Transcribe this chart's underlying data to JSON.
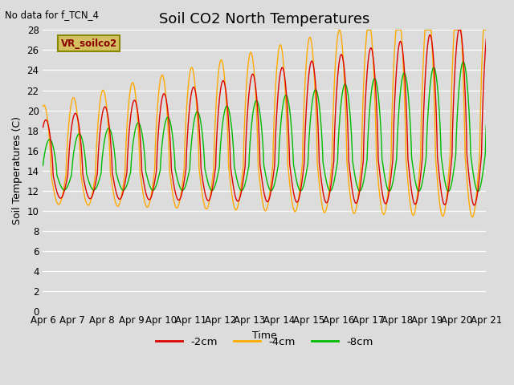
{
  "title": "Soil CO2 North Temperatures",
  "no_data_text": "No data for f_TCN_4",
  "ylabel": "Soil Temperatures (C)",
  "xlabel": "Time",
  "legend_label": "VR_soilco2",
  "ylim": [
    0,
    28
  ],
  "xtick_labels": [
    "Apr 6",
    "Apr 7",
    "Apr 8",
    "Apr 9",
    "Apr 10",
    "Apr 11",
    "Apr 12",
    "Apr 13",
    "Apr 14",
    "Apr 15",
    "Apr 16",
    "Apr 17",
    "Apr 18",
    "Apr 19",
    "Apr 20",
    "Apr 21"
  ],
  "line_colors": [
    "#dd0000",
    "#ffaa00",
    "#00bb00"
  ],
  "line_labels": [
    "-2cm",
    "-4cm",
    "-8cm"
  ],
  "plot_bg_color": "#dcdcdc",
  "fig_bg_color": "#dcdcdc",
  "grid_color": "#ffffff",
  "title_fontsize": 13,
  "label_fontsize": 9,
  "tick_fontsize": 8.5,
  "vr_box_facecolor": "#d4c060",
  "vr_box_edgecolor": "#888800",
  "vr_text_color": "#880000"
}
